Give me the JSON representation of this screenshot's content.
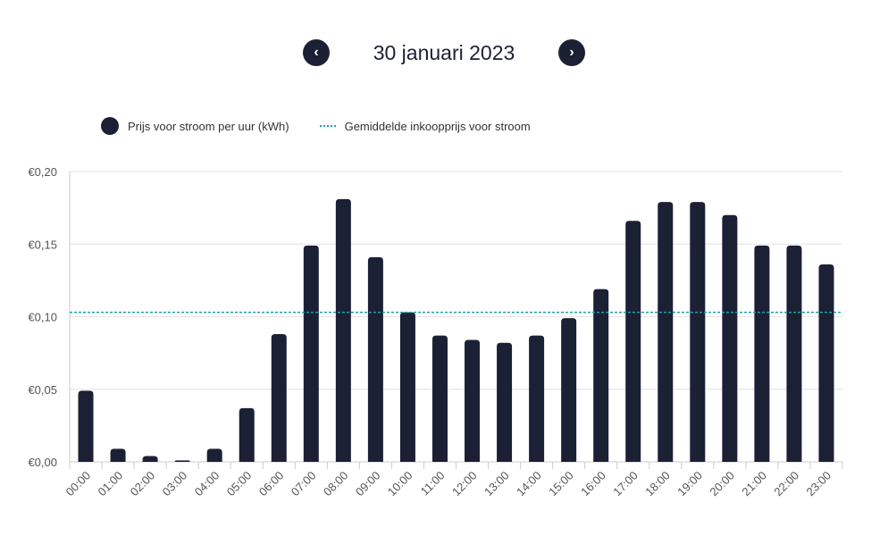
{
  "header": {
    "prev_icon": "chevron-left-icon",
    "next_icon": "chevron-right-icon",
    "date": "30 januari 2023"
  },
  "chart_data": {
    "type": "bar",
    "title": "30 januari 2023",
    "categories": [
      "00:00",
      "01:00",
      "02:00",
      "03:00",
      "04:00",
      "05:00",
      "06:00",
      "07:00",
      "08:00",
      "09:00",
      "10:00",
      "11:00",
      "12:00",
      "13:00",
      "14:00",
      "15:00",
      "16:00",
      "17:00",
      "18:00",
      "19:00",
      "20:00",
      "21:00",
      "22:00",
      "23:00"
    ],
    "series": [
      {
        "name": "Prijs voor stroom per uur (kWh)",
        "color": "#1b2035",
        "values": [
          0.049,
          0.009,
          0.004,
          0.001,
          0.009,
          0.037,
          0.088,
          0.149,
          0.181,
          0.141,
          0.103,
          0.087,
          0.084,
          0.082,
          0.087,
          0.099,
          0.119,
          0.166,
          0.179,
          0.179,
          0.17,
          0.149,
          0.149,
          0.136
        ]
      }
    ],
    "reference_line": {
      "name": "Gemiddelde inkoopprijs voor stroom",
      "value": 0.103,
      "color": "#1aa3a8",
      "style": "dotted"
    },
    "ylim": [
      0,
      0.2
    ],
    "yticks": [
      0,
      0.05,
      0.1,
      0.15,
      0.2
    ],
    "ytick_labels": [
      "€0,00",
      "€0,05",
      "€0,10",
      "€0,15",
      "€0,20"
    ],
    "grid": true,
    "legend": "top-left"
  }
}
